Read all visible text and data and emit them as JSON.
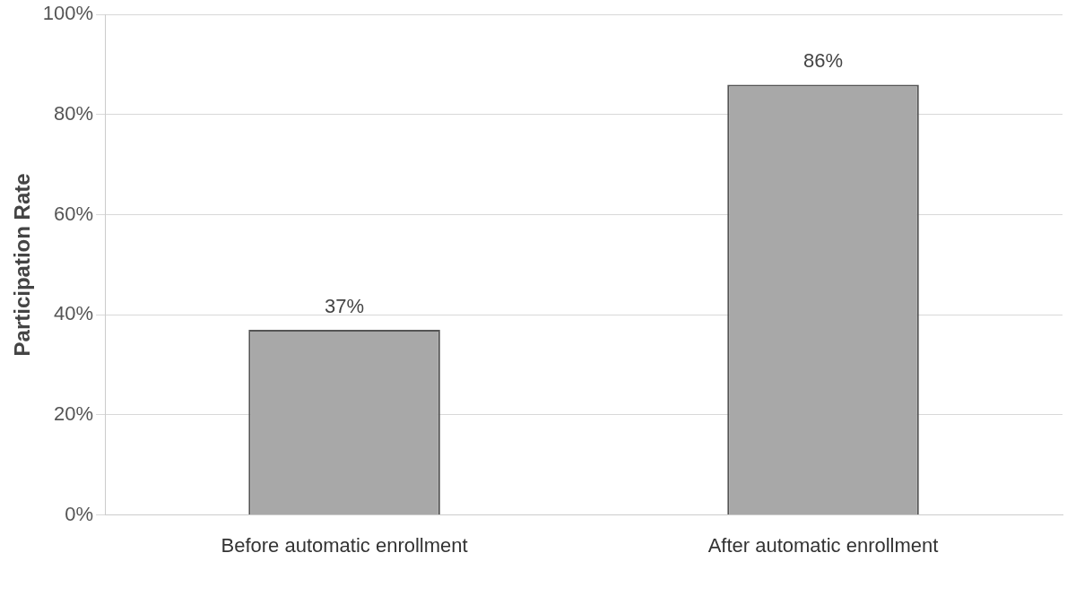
{
  "chart_data": {
    "type": "bar",
    "ylabel": "Participation Rate",
    "categories": [
      "Before automatic enrollment",
      "After automatic enrollment"
    ],
    "values": [
      37,
      86
    ],
    "color": "#a8a8a8",
    "value_labels": [
      "37%",
      "86%"
    ],
    "ylim": [
      0,
      100
    ],
    "yticks": [
      {
        "value": 0,
        "label": "0%"
      },
      {
        "value": 20,
        "label": "20%"
      },
      {
        "value": 40,
        "label": "40%"
      },
      {
        "value": 60,
        "label": "60%"
      },
      {
        "value": 80,
        "label": "80%"
      },
      {
        "value": 100,
        "label": "100%"
      }
    ],
    "grid": "y",
    "legend": false
  }
}
